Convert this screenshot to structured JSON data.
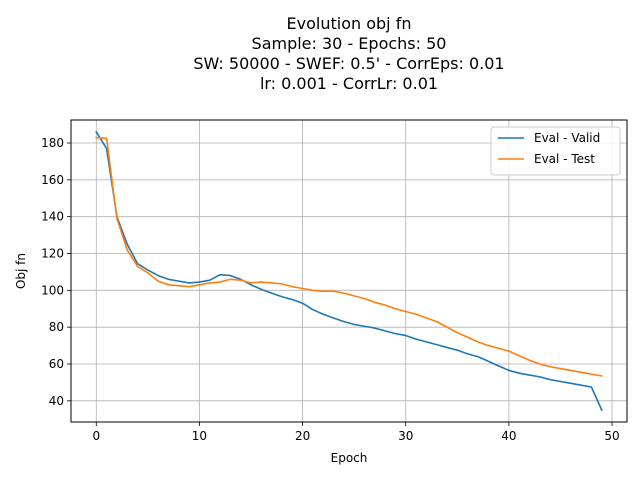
{
  "chart_data": {
    "type": "line",
    "title_lines": [
      "Evolution obj fn",
      "Sample: 30 - Epochs: 50",
      "SW: 50000 - SWEF: 0.5' - CorrEps: 0.01",
      "lr: 0.001 - CorrLr: 0.01"
    ],
    "xlabel": "Epoch",
    "ylabel": "Obj fn",
    "xlim": [
      -2.45,
      51.45
    ],
    "ylim": [
      28.5,
      192.5
    ],
    "xticks": [
      0,
      10,
      20,
      30,
      40,
      50
    ],
    "yticks": [
      40,
      60,
      80,
      100,
      120,
      140,
      160,
      180
    ],
    "grid": true,
    "legend_position": "top-right",
    "x": [
      0,
      1,
      2,
      3,
      4,
      5,
      6,
      7,
      8,
      9,
      10,
      11,
      12,
      13,
      14,
      15,
      16,
      17,
      18,
      19,
      20,
      21,
      22,
      23,
      24,
      25,
      26,
      27,
      28,
      29,
      30,
      31,
      32,
      33,
      34,
      35,
      36,
      37,
      38,
      39,
      40,
      41,
      42,
      43,
      44,
      45,
      46,
      47,
      48,
      49
    ],
    "series": [
      {
        "name": "Eval - Valid",
        "color": "#1f77b4",
        "values": [
          186,
          177,
          140,
          125,
          114.5,
          111,
          108,
          106,
          105,
          104,
          104.5,
          105.5,
          108.5,
          108,
          106,
          103,
          100.5,
          98.5,
          96.5,
          95,
          93,
          89.5,
          87,
          85,
          83,
          81.5,
          80.5,
          79.5,
          78,
          76.5,
          75.5,
          73.5,
          72,
          70.5,
          69,
          67.5,
          65.5,
          64,
          61.5,
          59,
          56.5,
          55,
          54,
          53,
          51.5,
          50.5,
          49.5,
          48.5,
          47.5,
          35
        ]
      },
      {
        "name": "Eval - Test",
        "color": "#ff7f0e",
        "values": [
          183,
          182.5,
          139,
          122,
          113,
          109.5,
          105,
          103,
          102.5,
          102,
          103,
          104,
          104.5,
          106,
          105.5,
          104,
          104.5,
          104,
          103.5,
          102,
          101,
          100,
          99.5,
          99.5,
          98.5,
          97,
          95.5,
          93.5,
          92,
          90,
          88.5,
          87,
          85,
          83,
          80,
          77,
          74.5,
          72,
          70,
          68.5,
          67,
          64.5,
          62,
          60,
          58.5,
          57.5,
          56.5,
          55.5,
          54.5,
          53.5
        ]
      }
    ]
  }
}
